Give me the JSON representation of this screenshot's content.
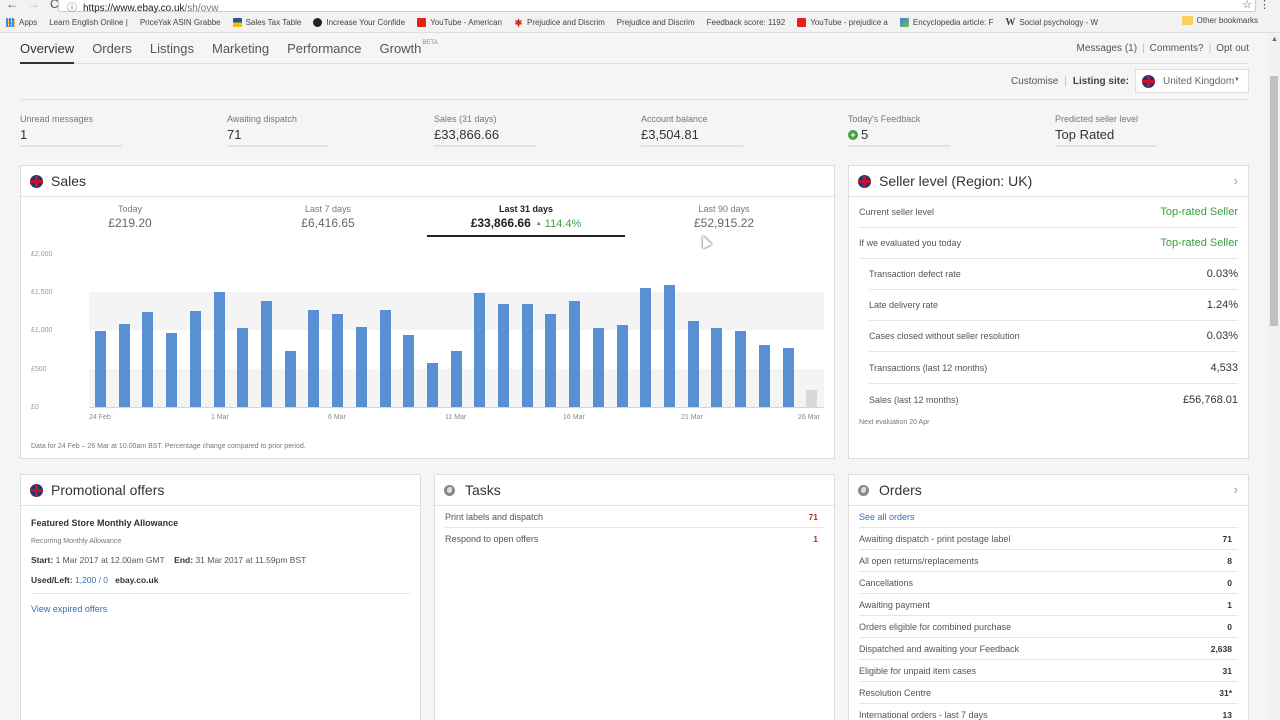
{
  "browser": {
    "url_host": "https://www.ebay.co.uk",
    "url_path": "/sh/ovw",
    "bookmarks": [
      {
        "label": "Apps",
        "icon": "apps-grid-icon"
      },
      {
        "label": "Learn English Online |",
        "icon": "page-icon"
      },
      {
        "label": "PriceYak ASIN Grabbe",
        "icon": "page-icon"
      },
      {
        "label": "Sales Tax Table",
        "icon": "tax-icon"
      },
      {
        "label": "Increase Your Confide",
        "icon": "circle-logo-icon"
      },
      {
        "label": "YouTube - American",
        "icon": "youtube-icon"
      },
      {
        "label": "Prejudice and Discrim",
        "icon": "maple-leaf-icon"
      },
      {
        "label": "Prejudice and Discrim",
        "icon": "page-icon"
      },
      {
        "label": "Feedback score: 1192",
        "icon": "page-icon"
      },
      {
        "label": "YouTube - prejudice a",
        "icon": "youtube-icon"
      },
      {
        "label": "Encyclopedia article: F",
        "icon": "encyclopedia-icon"
      },
      {
        "label": "Social psychology - W",
        "icon": "wikipedia-icon"
      }
    ],
    "more": "»",
    "other_bookmarks": "Other bookmarks"
  },
  "nav": {
    "tabs": [
      {
        "label": "Overview",
        "active": true
      },
      {
        "label": "Orders"
      },
      {
        "label": "Listings"
      },
      {
        "label": "Marketing"
      },
      {
        "label": "Performance"
      },
      {
        "label": "Growth",
        "badge": "BETA"
      }
    ],
    "links": [
      "Messages (1)",
      "Comments?",
      "Opt out"
    ]
  },
  "customise": {
    "customise_label": "Customise",
    "listing_site_label": "Listing site:",
    "listing_site_value": "United Kingdom"
  },
  "stats": [
    {
      "label": "Unread messages",
      "value": "1"
    },
    {
      "label": "Awaiting dispatch",
      "value": "71"
    },
    {
      "label": "Sales (31 days)",
      "value": "£33,866.66"
    },
    {
      "label": "Account balance",
      "value": "£3,504.81"
    },
    {
      "label": "Today's Feedback",
      "value": "5"
    },
    {
      "label": "Predicted seller level",
      "value": "Top Rated"
    }
  ],
  "sales": {
    "title": "Sales",
    "periods": [
      {
        "label": "Today",
        "value": "£219.20"
      },
      {
        "label": "Last 7 days",
        "value": "£6,416.65"
      },
      {
        "label": "Last 31 days",
        "value": "£33,866.66",
        "change": "114.4%",
        "active": true
      },
      {
        "label": "Last 90 days",
        "value": "£52,915.22"
      }
    ],
    "note": "Data for 24 Feb – 26 Mar at 10.00am BST. Percentage change compared to prior period."
  },
  "chart_data": {
    "type": "bar",
    "title": "Sales",
    "xlabel": "",
    "ylabel": "",
    "ylim": [
      0,
      2000
    ],
    "y_ticks": [
      "£0",
      "£500",
      "£1,000",
      "£1,500",
      "£2,000"
    ],
    "x_tick_labels": [
      "24 Feb",
      "1 Mar",
      "6 Mar",
      "11 Mar",
      "16 Mar",
      "21 Mar",
      "26 Mar"
    ],
    "grid": "alternating bands",
    "categories": [
      "24 Feb",
      "25 Feb",
      "26 Feb",
      "27 Feb",
      "28 Feb",
      "1 Mar",
      "2 Mar",
      "3 Mar",
      "4 Mar",
      "5 Mar",
      "6 Mar",
      "7 Mar",
      "8 Mar",
      "9 Mar",
      "10 Mar",
      "11 Mar",
      "12 Mar",
      "13 Mar",
      "14 Mar",
      "15 Mar",
      "16 Mar",
      "17 Mar",
      "18 Mar",
      "19 Mar",
      "20 Mar",
      "21 Mar",
      "22 Mar",
      "23 Mar",
      "24 Mar",
      "25 Mar",
      "26 Mar"
    ],
    "values": [
      990,
      1080,
      1240,
      970,
      1250,
      1510,
      1030,
      1380,
      730,
      1270,
      1210,
      1040,
      1270,
      940,
      570,
      730,
      1490,
      1350,
      1350,
      1210,
      1390,
      1030,
      1070,
      1550,
      1600,
      1120,
      1030,
      990,
      810,
      770,
      220
    ],
    "partial_last": true
  },
  "seller_level": {
    "title": "Seller level (Region: UK)",
    "rows": [
      {
        "label": "Current seller level",
        "value": "Top-rated Seller",
        "green": true
      },
      {
        "label": "If we evaluated you today",
        "value": "Top-rated Seller",
        "green": true
      },
      {
        "label": "Transaction defect rate",
        "value": "0.03%",
        "sub": true
      },
      {
        "label": "Late delivery rate",
        "value": "1.24%",
        "sub": true
      },
      {
        "label": "Cases closed without seller resolution",
        "value": "0.03%",
        "sub": true
      },
      {
        "label": "Transactions (last 12 months)",
        "value": "4,533",
        "sub": true
      },
      {
        "label": "Sales (last 12 months)",
        "value": "£56,768.01",
        "sub": true
      }
    ],
    "next_evaluation": "Next evaluation 20 Apr"
  },
  "promo": {
    "title": "Promotional offers",
    "offer_title": "Featured Store Monthly Allowance",
    "offer_sub": "Recurring Monthly Allowance",
    "start_label": "Start:",
    "start_value": "1 Mar 2017 at 12.00am GMT",
    "end_label": "End:",
    "end_value": "31 Mar 2017 at 11.59pm BST",
    "used_label": "Used/Left:",
    "used_value": "1,200 / 0",
    "site": "ebay.co.uk",
    "view_expired": "View expired offers"
  },
  "tasks": {
    "title": "Tasks",
    "rows": [
      {
        "label": "Print labels and dispatch",
        "count": "71"
      },
      {
        "label": "Respond to open offers",
        "count": "1"
      }
    ]
  },
  "orders": {
    "title": "Orders",
    "see_all": "See all orders",
    "rows": [
      {
        "label": "Awaiting dispatch - print postage label",
        "count": "71"
      },
      {
        "label": "All open returns/replacements",
        "count": "8"
      },
      {
        "label": "Cancellations",
        "count": "0"
      },
      {
        "label": "Awaiting payment",
        "count": "1"
      },
      {
        "label": "Orders eligible for combined purchase",
        "count": "0"
      },
      {
        "label": "Dispatched and awaiting your Feedback",
        "count": "2,638"
      },
      {
        "label": "Eligible for unpaid item cases",
        "count": "31"
      },
      {
        "label": "Resolution Centre",
        "count": "31*"
      },
      {
        "label": "International orders - last 7 days",
        "count": "13"
      }
    ]
  }
}
